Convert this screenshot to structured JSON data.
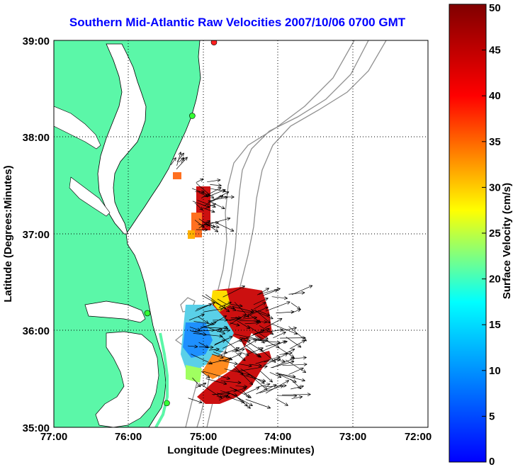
{
  "title": "Southern Mid-Atlantic Raw Velocities 2007/10/06 0700 GMT",
  "map": {
    "xlabel": "Longitude (Degrees:Minutes)",
    "ylabel": "Latitude (Degrees:Minutes)",
    "lon_ticks": [
      "77:00",
      "76:00",
      "75:00",
      "74:00",
      "73:00",
      "72:00"
    ],
    "lat_ticks": [
      "39:00",
      "38:00",
      "37:00",
      "36:00",
      "35:00"
    ],
    "lon_range": [
      -77,
      -72
    ],
    "lat_range": [
      35,
      39
    ],
    "land_color": "#5bf7a8",
    "bathymetry_color": "#909090"
  },
  "colorbar": {
    "label": "Surface Velocity (cm/s)",
    "ticks": [
      "0",
      "5",
      "10",
      "15",
      "20",
      "25",
      "30",
      "35",
      "40",
      "45",
      "50"
    ],
    "range": [
      0,
      50
    ],
    "colormap": "jet"
  },
  "stations": [
    {
      "lon": -74.86,
      "lat": 38.98,
      "color": "#ff2020"
    },
    {
      "lon": -75.15,
      "lat": 38.22,
      "color": "#33ff33"
    },
    {
      "lon": -75.75,
      "lat": 36.18,
      "color": "#33ff33"
    },
    {
      "lon": -75.49,
      "lat": 35.25,
      "color": "#33ff33"
    }
  ]
}
